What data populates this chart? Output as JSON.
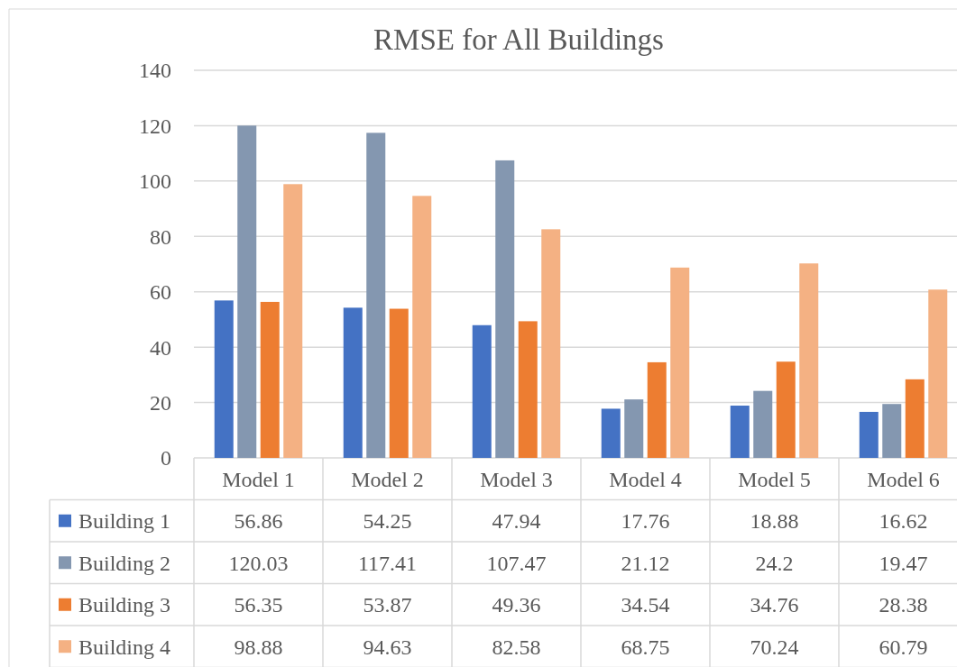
{
  "chart_data": {
    "type": "bar",
    "title": "RMSE for All Buildings",
    "categories": [
      "Model 1",
      "Model 2",
      "Model 3",
      "Model 4",
      "Model 5",
      "Model 6"
    ],
    "series": [
      {
        "name": "Building 1",
        "color": "#4472c4",
        "values": [
          56.86,
          54.25,
          47.94,
          17.76,
          18.88,
          16.62
        ]
      },
      {
        "name": "Building 2",
        "color": "#8497b0",
        "values": [
          120.03,
          117.41,
          107.47,
          21.12,
          24.2,
          19.47
        ]
      },
      {
        "name": "Building 3",
        "color": "#ed7d31",
        "values": [
          56.35,
          53.87,
          49.36,
          34.54,
          34.76,
          28.38
        ]
      },
      {
        "name": "Building 4",
        "color": "#f4b183",
        "values": [
          98.88,
          94.63,
          82.58,
          68.75,
          70.24,
          60.79
        ]
      }
    ],
    "ylim": [
      0,
      140
    ],
    "yticks": [
      0,
      20,
      40,
      60,
      80,
      100,
      120,
      140
    ],
    "grid": "y",
    "legend": "bottom",
    "data_labels": true
  }
}
